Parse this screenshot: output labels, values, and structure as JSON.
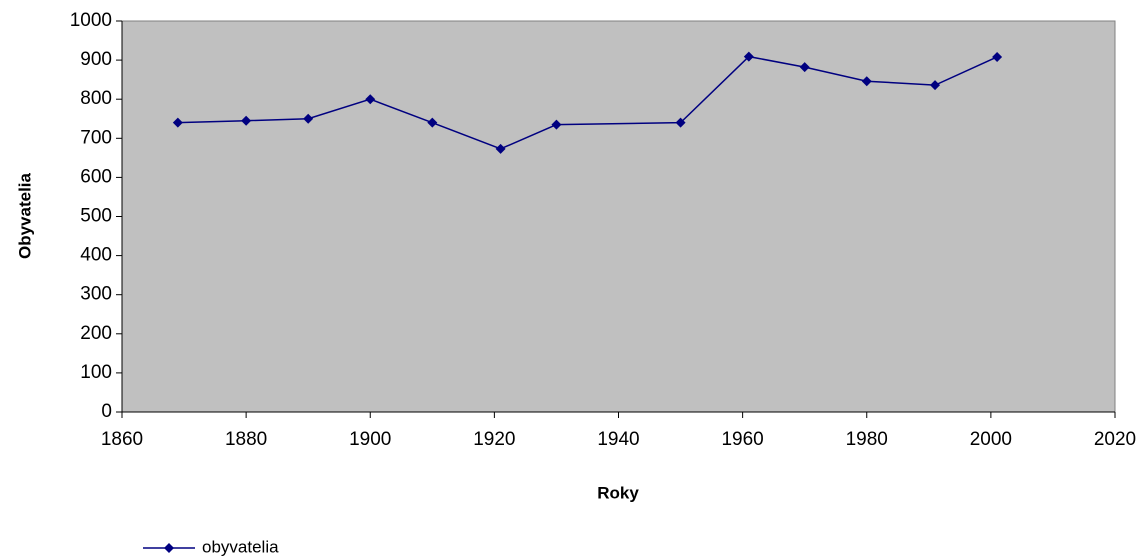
{
  "chart_data": {
    "type": "line",
    "x_label": "Roky",
    "y_label": "Obyvatelia",
    "x": [
      1869,
      1880,
      1890,
      1900,
      1910,
      1921,
      1930,
      1950,
      1961,
      1970,
      1980,
      1991,
      2001
    ],
    "series": [
      {
        "name": "obyvatelia",
        "color": "#000080",
        "values": [
          740,
          745,
          750,
          800,
          740,
          673,
          735,
          740,
          909,
          882,
          846,
          836,
          908
        ]
      }
    ],
    "xlim": [
      1860,
      2020
    ],
    "xticks": [
      1860,
      1880,
      1900,
      1920,
      1940,
      1960,
      1980,
      2000,
      2020
    ],
    "ylim": [
      0,
      1000
    ],
    "yticks": [
      0,
      100,
      200,
      300,
      400,
      500,
      600,
      700,
      800,
      900,
      1000
    ],
    "plot_background": "#c0c0c0",
    "legend": "bottom-left"
  }
}
